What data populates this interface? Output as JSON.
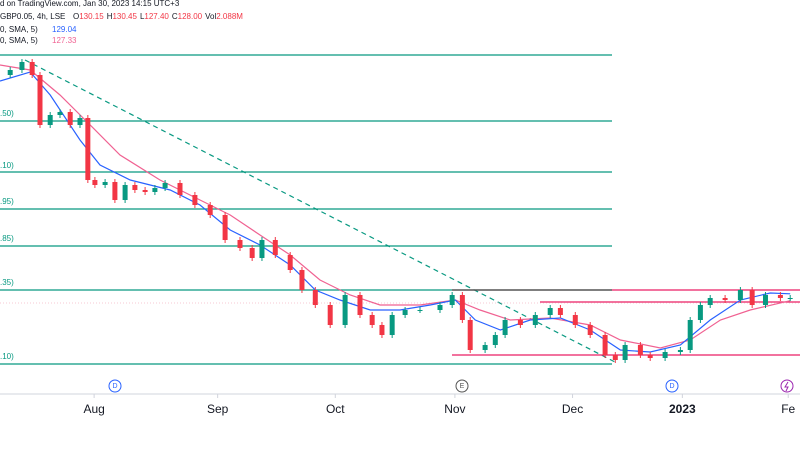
{
  "chart_data": {
    "type": "candlestick",
    "header": {
      "source": "d on TradingView.com, Jan 30, 2023 14:15 UTC+3",
      "symbol": "GBP0.05, 4h, LSE",
      "ohlc": [
        "O",
        "130.15",
        "H",
        "130.45",
        "L",
        "127.40",
        "C",
        "128.00",
        "Vol",
        "2.088M"
      ],
      "sma1": "0, SMA, 5)",
      "sma1_value": "129.04",
      "sma2": "0, SMA, 5)",
      "sma2_value": "127.33"
    },
    "fib_labels": [
      ".50)",
      ".10)",
      ".95)",
      ".85)",
      ".35)",
      ".10)"
    ],
    "events": [
      "D",
      "E",
      "D"
    ],
    "xlim": [
      0,
      204
    ],
    "xticks": [
      {
        "value": 24,
        "label": "Aug"
      },
      {
        "value": 55.5,
        "label": "Sep"
      },
      {
        "value": 85.5,
        "label": "Oct"
      },
      {
        "value": 116,
        "label": "Nov"
      },
      {
        "value": 146,
        "label": "Dec"
      },
      {
        "value": 174,
        "label": "2023"
      },
      {
        "value": 201,
        "label": "Fe"
      }
    ],
    "ylim": [
      105,
      202.5
    ],
    "series": [
      {
        "kind": "price",
        "up_color": "#089981",
        "down_color": "#f23645",
        "x": [
          0,
          2.6,
          5.6,
          8.2,
          10.2,
          12.8,
          15.3,
          17.9,
          20.4,
          22.4,
          24.2,
          26.8,
          29.3,
          31.9,
          34.4,
          37,
          39.5,
          42.1,
          45.9,
          49.7,
          53.6,
          57.4,
          61.2,
          64.3,
          66.8,
          70.2,
          74,
          77,
          80.4,
          84.2,
          88,
          91.8,
          94.9,
          97.4,
          100,
          103.3,
          107.1,
          112.2,
          115.3,
          117.9,
          119.9,
          123.7,
          126.3,
          128.8,
          132.7,
          136.5,
          140.3,
          142.9,
          146.7,
          150.5,
          154.3,
          156.9,
          159.4,
          163.3,
          165.8,
          169.6,
          173.5,
          176,
          178.6,
          181.1,
          184.9,
          188.8,
          191.8,
          195.2,
          199,
          201.5
        ],
        "values": [
          183.75,
          185,
          187,
          183.75,
          171.25,
          173.75,
          174.5,
          171.25,
          173,
          157.5,
          156.25,
          157,
          152.5,
          156.25,
          155,
          154.5,
          155.5,
          156.75,
          153.75,
          151.25,
          148.75,
          142.5,
          140.5,
          138,
          142.5,
          138.75,
          135,
          130,
          126.25,
          121.25,
          128.75,
          123.75,
          121.25,
          118.75,
          123.75,
          125,
          125,
          126.25,
          128.75,
          122.5,
          115,
          116.25,
          118.75,
          122.5,
          121.25,
          123.75,
          125.5,
          123.75,
          121.25,
          118.75,
          113.75,
          112.5,
          116.25,
          113.75,
          113,
          114.5,
          115,
          122.5,
          126.25,
          128,
          127.5,
          130,
          126.25,
          128.75,
          128,
          128
        ]
      },
      {
        "kind": "line",
        "color": "#2962ff",
        "x": [
          0,
          7.7,
          12.8,
          20.4,
          25.5,
          33.2,
          43.4,
          51,
          58.7,
          66.3,
          74,
          80.4,
          86.7,
          94.4,
          102,
          109.7,
          116.1,
          121.2,
          127.6,
          135.2,
          142.9,
          150.5,
          158.2,
          165.8,
          173.5,
          181.1,
          188.8,
          196.4,
          201.5
        ],
        "values": [
          182.25,
          184.5,
          178.75,
          167.5,
          161.25,
          157.5,
          155,
          151.25,
          145,
          141.25,
          136.25,
          130,
          127.5,
          125,
          125,
          126.25,
          127.5,
          122.5,
          120,
          122.5,
          123,
          120,
          115,
          114.5,
          116.25,
          122.5,
          127.5,
          129.25,
          129.04
        ]
      },
      {
        "kind": "line",
        "color": "#f06292",
        "x": [
          0,
          7.7,
          15.3,
          23,
          30.6,
          40.8,
          51,
          58.7,
          66.3,
          74,
          81.6,
          89.3,
          96.9,
          107.1,
          116.1,
          122.4,
          130.1,
          140.3,
          150.5,
          158.2,
          168.4,
          176,
          183.7,
          191.3,
          201.5
        ],
        "values": [
          186.25,
          185,
          178.75,
          171.25,
          163.75,
          157.5,
          152.5,
          148.75,
          143.75,
          138.75,
          132.5,
          128.75,
          126.25,
          126.25,
          127.5,
          125,
          122.5,
          123,
          121.25,
          117.5,
          115.5,
          117.5,
          122.5,
          125,
          127.33
        ]
      }
    ]
  }
}
